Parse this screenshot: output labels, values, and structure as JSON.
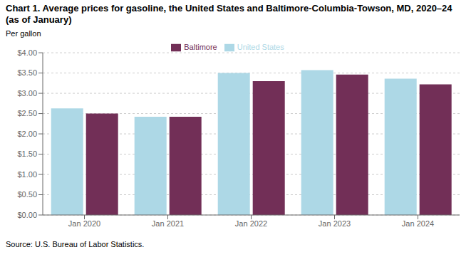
{
  "chart_data": {
    "type": "bar",
    "title": "Chart 1. Average prices for gasoline, the United States and Baltimore-Columbia-Towson, MD, 2020–24 (as of January)",
    "y_label": "Per gallon",
    "source": "Source: U.S. Bureau of Labor Statistics.",
    "categories": [
      "Jan 2020",
      "Jan 2021",
      "Jan 2022",
      "Jan 2023",
      "Jan 2024"
    ],
    "series": [
      {
        "name": "United States",
        "color": "#add8e6",
        "values": [
          2.63,
          2.42,
          3.5,
          3.57,
          3.36
        ]
      },
      {
        "name": "Baltimore",
        "color": "#722f57",
        "values": [
          2.5,
          2.42,
          3.3,
          3.46,
          3.22
        ]
      }
    ],
    "ylim": [
      0,
      4.0
    ],
    "yticks": [
      {
        "value": 0.0,
        "label": "$0.00"
      },
      {
        "value": 0.5,
        "label": "$0.50"
      },
      {
        "value": 1.0,
        "label": "$1.00"
      },
      {
        "value": 1.5,
        "label": "$1.50"
      },
      {
        "value": 2.0,
        "label": "$2.00"
      },
      {
        "value": 2.5,
        "label": "$2.50"
      },
      {
        "value": 3.0,
        "label": "$3.00"
      },
      {
        "value": 3.5,
        "label": "$3.50"
      },
      {
        "value": 4.0,
        "label": "$4.00"
      }
    ],
    "grid": true,
    "legend": "top"
  }
}
